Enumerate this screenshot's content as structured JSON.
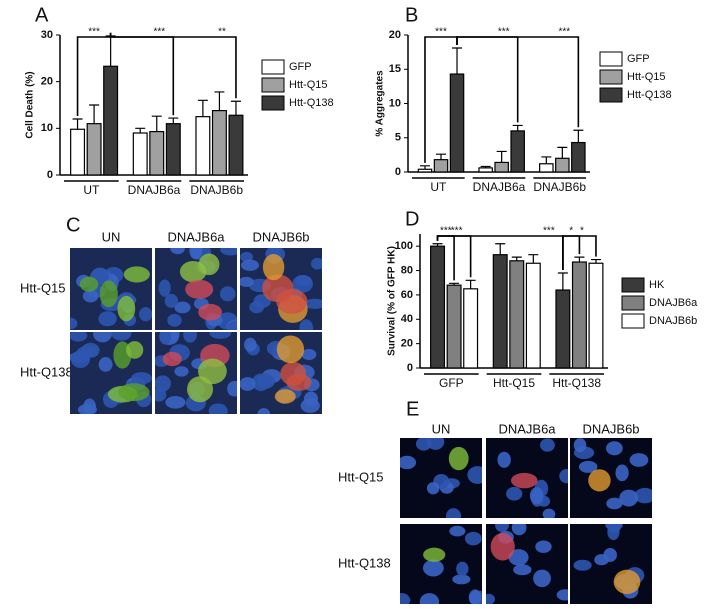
{
  "chart_data": [
    {
      "panel": "A",
      "type": "bar",
      "ylabel": "Cell Death (%)",
      "categories": [
        "UT",
        "DNAJB6a",
        "DNAJB6b"
      ],
      "series": [
        {
          "name": "GFP",
          "color": "#ffffff",
          "values": [
            9.8,
            9,
            12.5
          ],
          "errors": [
            2.2,
            1,
            3.5
          ]
        },
        {
          "name": "Htt-Q15",
          "color": "#a0a0a0",
          "values": [
            11,
            9.3,
            13.8
          ],
          "errors": [
            4,
            3.3,
            4
          ]
        },
        {
          "name": "Htt-Q138",
          "color": "#3a3a3a",
          "values": [
            23.3,
            11,
            12.8
          ],
          "errors": [
            6.5,
            1.2,
            3
          ]
        }
      ],
      "ylim": [
        0,
        30
      ],
      "yticks": [
        0,
        10,
        20,
        30
      ],
      "annotations": [
        "***",
        "***",
        "**"
      ]
    },
    {
      "panel": "B",
      "type": "bar",
      "ylabel": "% Aggregates",
      "categories": [
        "UT",
        "DNAJB6a",
        "DNAJB6b"
      ],
      "series": [
        {
          "name": "GFP",
          "color": "#ffffff",
          "values": [
            0.4,
            0.6,
            1.2
          ],
          "errors": [
            0.5,
            0.2,
            1
          ]
        },
        {
          "name": "Htt-Q15",
          "color": "#a0a0a0",
          "values": [
            1.8,
            1.4,
            2
          ],
          "errors": [
            0.8,
            1.6,
            1.6
          ]
        },
        {
          "name": "Htt-Q138",
          "color": "#3a3a3a",
          "values": [
            14.3,
            6,
            4.3
          ],
          "errors": [
            3.8,
            0.8,
            1.8
          ]
        }
      ],
      "ylim": [
        0,
        20
      ],
      "yticks": [
        0,
        5,
        10,
        15,
        20
      ],
      "annotations": [
        "***",
        "***",
        "***"
      ]
    },
    {
      "panel": "D",
      "type": "bar",
      "ylabel": "Survival (% of GFP HK)",
      "categories": [
        "GFP",
        "Htt-Q15",
        "Htt-Q138"
      ],
      "series": [
        {
          "name": "HK",
          "color": "#3a3a3a",
          "values": [
            100,
            93,
            64
          ],
          "errors": [
            2,
            9,
            14
          ]
        },
        {
          "name": "DNAJB6a",
          "color": "#808080",
          "values": [
            68,
            88,
            87
          ],
          "errors": [
            1.5,
            3,
            4
          ]
        },
        {
          "name": "DNAJB6b",
          "color": "#ffffff",
          "values": [
            65,
            86,
            86
          ],
          "errors": [
            7,
            7,
            3
          ]
        }
      ],
      "ylim": [
        0,
        110
      ],
      "yticks": [
        0,
        20,
        40,
        60,
        80,
        100
      ],
      "annotations": [
        "***",
        "***",
        "***",
        "*",
        "*"
      ]
    }
  ],
  "image_panels": [
    {
      "panel": "C",
      "columns": [
        "UN",
        "DNAJB6a",
        "DNAJB6b"
      ],
      "rows": [
        "Htt-Q15",
        "Htt-Q138"
      ]
    },
    {
      "panel": "E",
      "columns": [
        "UN",
        "DNAJB6a",
        "DNAJB6b"
      ],
      "rows": [
        "Htt-Q15",
        "Htt-Q138"
      ]
    }
  ]
}
